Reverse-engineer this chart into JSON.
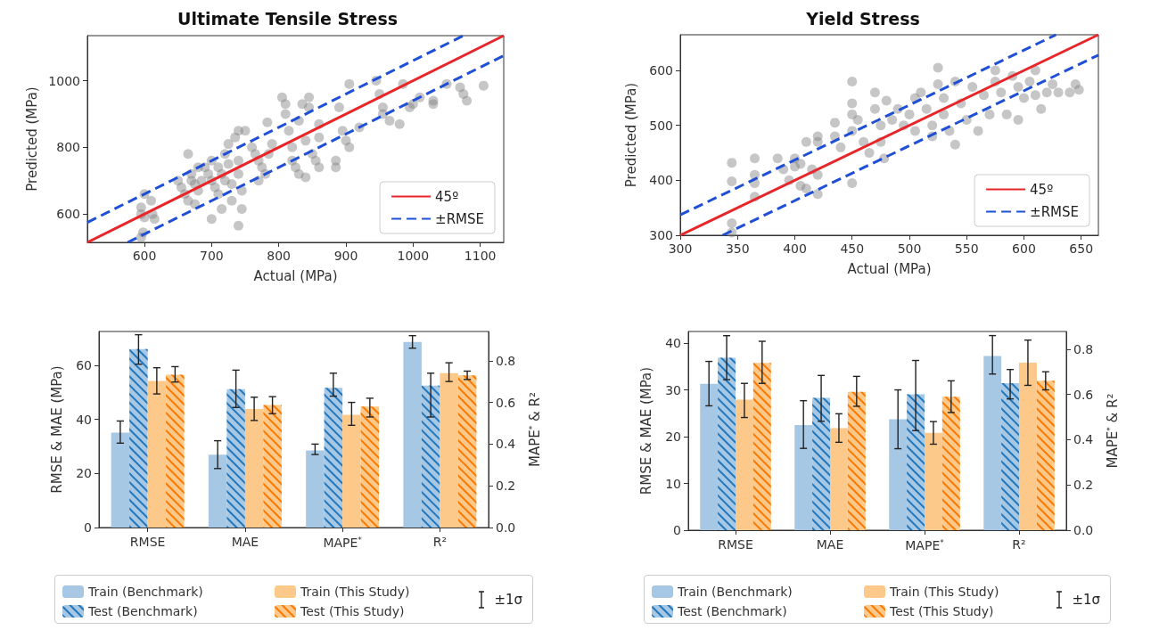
{
  "chart_data": [
    {
      "type": "scatter",
      "title": "Ultimate Tensile Stress",
      "xlabel": "Actual (MPa)",
      "ylabel": "Predicted (MPa)",
      "xlim": [
        515,
        1135
      ],
      "ylim": [
        515,
        1135
      ],
      "xticks": [
        600,
        700,
        800,
        900,
        1000,
        1100
      ],
      "yticks": [
        600,
        800,
        1000
      ],
      "legend": "bottom right",
      "series": [
        {
          "color": "#808080",
          "marker": "circle",
          "x": [
            595,
            595,
            595,
            600,
            610,
            612,
            615,
            600,
            598,
            650,
            655,
            660,
            665,
            670,
            670,
            675,
            680,
            680,
            675,
            685,
            665,
            690,
            695,
            700,
            700,
            705,
            710,
            710,
            715,
            720,
            720,
            725,
            725,
            730,
            730,
            735,
            740,
            740,
            740,
            745,
            700,
            715,
            740,
            745,
            750,
            760,
            765,
            770,
            775,
            780,
            770,
            785,
            790,
            783,
            805,
            810,
            810,
            815,
            820,
            820,
            825,
            830,
            835,
            840,
            845,
            845,
            850,
            855,
            860,
            860,
            860,
            840,
            830,
            885,
            885,
            890,
            895,
            900,
            905,
            905,
            920,
            945,
            950,
            955,
            955,
            965,
            980,
            985,
            995,
            1000,
            1010,
            1030,
            1030,
            1050,
            1070,
            1075,
            1080,
            1105
          ],
          "values": [
            600,
            620,
            530,
            590,
            640,
            600,
            585,
            660,
            545,
            700,
            680,
            660,
            640,
            720,
            700,
            690,
            740,
            670,
            630,
            700,
            780,
            740,
            720,
            760,
            700,
            680,
            740,
            660,
            720,
            780,
            700,
            810,
            750,
            690,
            640,
            830,
            850,
            760,
            720,
            670,
            585,
            615,
            565,
            615,
            850,
            800,
            780,
            760,
            740,
            720,
            700,
            780,
            810,
            875,
            950,
            930,
            900,
            850,
            800,
            760,
            740,
            880,
            930,
            820,
            950,
            920,
            780,
            760,
            870,
            830,
            740,
            710,
            720,
            740,
            760,
            920,
            850,
            820,
            800,
            990,
            860,
            1000,
            960,
            920,
            900,
            880,
            870,
            990,
            920,
            930,
            950,
            930,
            940,
            990,
            980,
            960,
            940,
            985
          ]
        },
        {
          "name": "45º",
          "type": "line",
          "color": "#e8262a",
          "marker": "none",
          "x": [
            515,
            1135
          ],
          "values": [
            515,
            1135
          ]
        },
        {
          "name": "±RMSE",
          "type": "line",
          "color": "#1f4fd6",
          "marker": "none",
          "line_style": "dashed",
          "x": [
            515,
            1075
          ],
          "values": [
            575,
            1135
          ]
        },
        {
          "type": "line",
          "color": "#1f4fd6",
          "marker": "none",
          "line_style": "dashed",
          "x": [
            575,
            1135
          ],
          "values": [
            515,
            1075
          ]
        }
      ]
    },
    {
      "type": "scatter",
      "title": "Yield Stress",
      "xlabel": "Actual (MPa)",
      "ylabel": "Predicted (MPa)",
      "xlim": [
        300,
        665
      ],
      "ylim": [
        300,
        665
      ],
      "xticks": [
        300,
        350,
        400,
        450,
        500,
        550,
        600,
        650
      ],
      "yticks": [
        300,
        400,
        500,
        600
      ],
      "legend": "bottom right",
      "series": [
        {
          "color": "#808080",
          "marker": "circle",
          "x": [
            345,
            345,
            345,
            345,
            365,
            365,
            365,
            365,
            385,
            390,
            395,
            400,
            400,
            405,
            405,
            410,
            410,
            415,
            420,
            420,
            420,
            420,
            435,
            435,
            440,
            450,
            450,
            450,
            450,
            450,
            455,
            460,
            465,
            470,
            470,
            475,
            475,
            478,
            480,
            485,
            490,
            495,
            500,
            505,
            505,
            510,
            515,
            520,
            520,
            525,
            525,
            530,
            530,
            535,
            540,
            540,
            545,
            550,
            555,
            560,
            565,
            570,
            575,
            575,
            580,
            585,
            590,
            595,
            595,
            600,
            605,
            610,
            615,
            625,
            630,
            640,
            645,
            648,
            620,
            610
          ],
          "values": [
            432,
            398,
            322,
            305,
            440,
            410,
            395,
            370,
            440,
            420,
            400,
            440,
            425,
            390,
            430,
            470,
            385,
            420,
            480,
            470,
            410,
            375,
            505,
            480,
            460,
            580,
            540,
            520,
            490,
            395,
            510,
            470,
            450,
            560,
            530,
            500,
            470,
            440,
            545,
            510,
            530,
            500,
            520,
            550,
            490,
            560,
            530,
            500,
            480,
            605,
            575,
            550,
            520,
            490,
            580,
            465,
            540,
            510,
            570,
            490,
            555,
            520,
            600,
            580,
            560,
            520,
            590,
            570,
            510,
            550,
            580,
            555,
            530,
            575,
            560,
            560,
            575,
            565,
            560,
            600
          ]
        },
        {
          "name": "45º",
          "type": "line",
          "color": "#e8262a",
          "marker": "none",
          "x": [
            300,
            665
          ],
          "values": [
            300,
            665
          ]
        },
        {
          "name": "±RMSE",
          "type": "line",
          "color": "#1f4fd6",
          "marker": "none",
          "line_style": "dashed",
          "x": [
            300,
            628
          ],
          "values": [
            337,
            665
          ]
        },
        {
          "type": "line",
          "color": "#1f4fd6",
          "marker": "none",
          "line_style": "dashed",
          "x": [
            337,
            665
          ],
          "values": [
            300,
            628
          ]
        }
      ]
    },
    {
      "type": "bar",
      "ylabel": "RMSE & MAE (MPa)",
      "y2label": "MAPE$^{*}$ & R²",
      "categories": [
        "RMSE",
        "MAE",
        "MAPE$^{*}$",
        "R²"
      ],
      "ylim": [
        0,
        72.5
      ],
      "yticks": [
        0,
        20,
        40,
        60
      ],
      "y2lim": [
        0,
        0.94
      ],
      "y2ticks": [
        {
          "value": 0,
          "label": "0.0"
        },
        0.2,
        0.4,
        0.6,
        0.8
      ],
      "legend": "bottom",
      "annotations": [
        "±1σ"
      ],
      "series": [
        {
          "name": "Train (Benchmark)",
          "color": "#a6c8e4",
          "values": [
            35.1,
            26.9,
            null,
            null
          ],
          "errors": [
            [
              31.2,
              39.4
            ],
            [
              21.8,
              32.1
            ],
            null,
            null
          ]
        },
        {
          "name": "Test (Benchmark)",
          "color": "#a6c8e4",
          "values": [
            66.0,
            51.2,
            null,
            null
          ],
          "errors": [
            [
              60.4,
              71.3
            ],
            [
              44.4,
              58.2
            ],
            null,
            null
          ]
        },
        {
          "name": "Train (This Study)",
          "color": "#fdc98a",
          "values": [
            54.2,
            43.8,
            null,
            null
          ],
          "errors": [
            [
              49.4,
              59.1
            ],
            [
              39.6,
              48.2
            ],
            null,
            null
          ]
        },
        {
          "name": "Test (This Study)",
          "color": "#fdc98a",
          "values": [
            56.5,
            45.3,
            null,
            null
          ],
          "errors": [
            [
              53.8,
              59.5
            ],
            [
              42.1,
              48.4
            ],
            null,
            null
          ]
        },
        {
          "color": "#a6c8e4",
          "axis": "y2",
          "values": [
            null,
            null,
            0.37,
            0.89
          ],
          "errors": [
            null,
            null,
            [
              0.35,
              0.4
            ],
            [
              0.86,
              0.92
            ]
          ]
        },
        {
          "color": "#a6c8e4",
          "axis": "y2",
          "values": [
            null,
            null,
            0.67,
            0.68
          ],
          "errors": [
            null,
            null,
            [
              0.63,
              0.74
            ],
            [
              0.53,
              0.74
            ]
          ]
        },
        {
          "color": "#fdc98a",
          "axis": "y2",
          "values": [
            null,
            null,
            0.54,
            0.74
          ],
          "errors": [
            null,
            null,
            [
              0.49,
              0.6
            ],
            [
              0.7,
              0.79
            ]
          ]
        },
        {
          "color": "#fdc98a",
          "axis": "y2",
          "values": [
            null,
            null,
            0.58,
            0.73
          ],
          "errors": [
            null,
            null,
            [
              0.53,
              0.62
            ],
            [
              0.71,
              0.75
            ]
          ]
        }
      ]
    },
    {
      "type": "bar",
      "ylabel": "RMSE & MAE (MPa)",
      "y2label": "MAPE$^{*}$ & R²",
      "categories": [
        "RMSE",
        "MAE",
        "MAPE$^{*}$",
        "R²"
      ],
      "ylim": [
        0,
        42.5
      ],
      "yticks": [
        0,
        10,
        20,
        30,
        40
      ],
      "y2lim": [
        0,
        0.878
      ],
      "y2ticks": [
        {
          "value": 0,
          "label": "0.0"
        },
        0.2,
        0.4,
        0.6,
        0.8
      ],
      "legend": "bottom",
      "annotations": [
        "±1σ"
      ],
      "series": [
        {
          "name": "Train (Benchmark)",
          "color": "#a6c8e4",
          "values": [
            31.3,
            22.5,
            null,
            null
          ],
          "errors": [
            [
              26.6,
              36.1
            ],
            [
              17.5,
              27.7
            ],
            null,
            null
          ]
        },
        {
          "name": "Test (Benchmark)",
          "color": "#a6c8e4",
          "values": [
            36.9,
            28.3,
            null,
            null
          ],
          "errors": [
            [
              32.2,
              41.6
            ],
            [
              23.3,
              33.1
            ],
            null,
            null
          ]
        },
        {
          "name": "Train (This Study)",
          "color": "#fdc98a",
          "values": [
            27.9,
            21.8,
            null,
            null
          ],
          "errors": [
            [
              24.1,
              31.4
            ],
            [
              18.8,
              24.9
            ],
            null,
            null
          ]
        },
        {
          "name": "Test (This Study)",
          "color": "#fdc98a",
          "values": [
            35.8,
            29.6,
            null,
            null
          ],
          "errors": [
            [
              31.4,
              40.4
            ],
            [
              26.5,
              32.9
            ],
            null,
            null
          ]
        },
        {
          "color": "#a6c8e4",
          "axis": "y2",
          "values": [
            null,
            null,
            0.49,
            0.77
          ],
          "errors": [
            null,
            null,
            [
              0.36,
              0.62
            ],
            [
              0.69,
              0.86
            ]
          ]
        },
        {
          "color": "#a6c8e4",
          "axis": "y2",
          "values": [
            null,
            null,
            0.6,
            0.65
          ],
          "errors": [
            null,
            null,
            [
              0.44,
              0.75
            ],
            [
              0.58,
              0.71
            ]
          ]
        },
        {
          "color": "#fdc98a",
          "axis": "y2",
          "values": [
            null,
            null,
            0.43,
            0.74
          ],
          "errors": [
            null,
            null,
            [
              0.38,
              0.48
            ],
            [
              0.64,
              0.84
            ]
          ]
        },
        {
          "color": "#fdc98a",
          "axis": "y2",
          "values": [
            null,
            null,
            0.59,
            0.66
          ],
          "errors": [
            null,
            null,
            [
              0.52,
              0.66
            ],
            [
              0.62,
              0.7
            ]
          ]
        }
      ]
    }
  ]
}
